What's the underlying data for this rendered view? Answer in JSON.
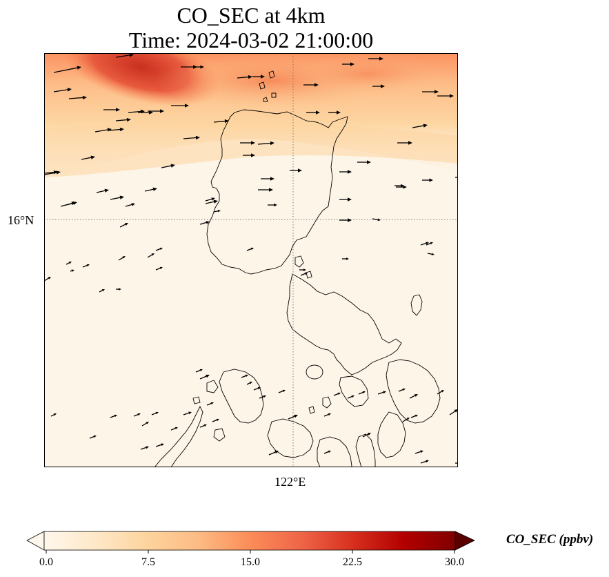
{
  "title": {
    "line1": "CO_SEC at 4km",
    "line2": "Time: 2024-03-02 21:00:00"
  },
  "map": {
    "lat_tick_label": "16°N",
    "lon_tick_label": "122°E",
    "gridlines": "dotted",
    "coastline_color": "#000000",
    "wind_vector_color": "#000000",
    "colormap": "OrRd",
    "background_color": "#fdf5e8"
  },
  "colorbar": {
    "label": "CO_SEC (ppbv)",
    "min": 0.0,
    "max": 30.0,
    "extend": "both",
    "ticks": [
      "0.0",
      "7.5",
      "15.0",
      "22.5",
      "30.0"
    ],
    "colors": [
      "#fff7ec",
      "#fee8c8",
      "#fdd49e",
      "#fdbb84",
      "#fc8d59",
      "#ef6548",
      "#d7301f",
      "#b30000",
      "#7f0000"
    ]
  }
}
